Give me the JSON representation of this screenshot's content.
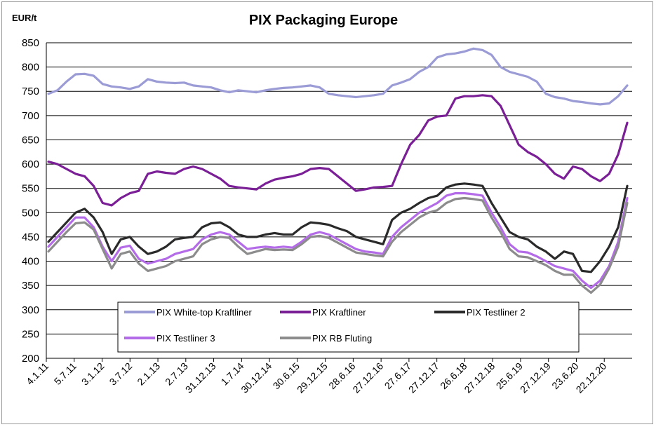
{
  "chart_data": {
    "type": "line",
    "title": "PIX Packaging Europe",
    "ylabel": "EUR/t",
    "ylim": [
      200,
      850
    ],
    "yticks": [
      200,
      250,
      300,
      350,
      400,
      450,
      500,
      550,
      600,
      650,
      700,
      750,
      800,
      850
    ],
    "grid": true,
    "legend_placement": "bottom-center",
    "x_tick_labels": [
      "4.1.11",
      "5.7.11",
      "3.1.12",
      "3.7.12",
      "2.1.13",
      "2.7.13",
      "31.12.13",
      "1.7.14",
      "30.12.14",
      "30.6.15",
      "29.12.15",
      "28.6.16",
      "27.12.16",
      "27.6.17",
      "27.12.17",
      "26.6.18",
      "27.12.18",
      "25.6.19",
      "27.12.19",
      "23.6.20",
      "22.12.20"
    ],
    "series": [
      {
        "name": "PIX White-top Kraftliner",
        "color": "#9b9bd6",
        "values": [
          745,
          752,
          770,
          785,
          786,
          782,
          765,
          760,
          758,
          755,
          760,
          775,
          770,
          768,
          767,
          768,
          762,
          760,
          758,
          752,
          748,
          752,
          750,
          748,
          752,
          755,
          757,
          758,
          760,
          762,
          758,
          745,
          742,
          740,
          738,
          740,
          742,
          745,
          762,
          768,
          775,
          790,
          800,
          820,
          826,
          828,
          832,
          838,
          835,
          825,
          800,
          790,
          785,
          780,
          770,
          745,
          738,
          735,
          730,
          728,
          725,
          723,
          725,
          740,
          762
        ]
      },
      {
        "name": "PIX Kraftliner",
        "color": "#7b1f97",
        "values": [
          605,
          600,
          590,
          580,
          575,
          555,
          520,
          515,
          530,
          540,
          545,
          580,
          585,
          582,
          580,
          590,
          595,
          590,
          580,
          570,
          555,
          552,
          550,
          548,
          560,
          568,
          572,
          575,
          580,
          590,
          592,
          590,
          575,
          560,
          545,
          548,
          552,
          553,
          555,
          600,
          640,
          660,
          690,
          698,
          700,
          735,
          740,
          740,
          742,
          740,
          720,
          680,
          640,
          625,
          615,
          600,
          580,
          570,
          595,
          590,
          575,
          565,
          580,
          620,
          685
        ]
      },
      {
        "name": "PIX Testliner 2",
        "color": "#2a2a2a",
        "values": [
          440,
          460,
          480,
          500,
          508,
          490,
          460,
          415,
          445,
          450,
          430,
          415,
          420,
          430,
          445,
          448,
          450,
          470,
          478,
          480,
          470,
          455,
          450,
          450,
          455,
          458,
          455,
          455,
          470,
          480,
          478,
          475,
          468,
          462,
          450,
          445,
          440,
          435,
          485,
          500,
          508,
          520,
          530,
          535,
          552,
          558,
          560,
          558,
          555,
          520,
          490,
          460,
          450,
          445,
          430,
          420,
          405,
          420,
          415,
          380,
          378,
          400,
          430,
          470,
          555
        ]
      },
      {
        "name": "PIX Testliner 3",
        "color": "#b46be8",
        "values": [
          430,
          450,
          470,
          490,
          490,
          470,
          430,
          400,
          428,
          432,
          405,
          395,
          400,
          405,
          415,
          420,
          425,
          445,
          455,
          460,
          455,
          440,
          425,
          428,
          430,
          428,
          430,
          428,
          440,
          455,
          460,
          455,
          445,
          435,
          425,
          420,
          418,
          415,
          450,
          470,
          485,
          500,
          510,
          520,
          535,
          540,
          540,
          538,
          535,
          500,
          470,
          435,
          420,
          418,
          410,
          400,
          390,
          385,
          380,
          360,
          345,
          360,
          390,
          440,
          530
        ]
      },
      {
        "name": "PIX RB Fluting",
        "color": "#8c8c8c",
        "values": [
          420,
          440,
          460,
          478,
          480,
          465,
          425,
          385,
          415,
          420,
          395,
          380,
          385,
          390,
          400,
          405,
          410,
          435,
          445,
          450,
          448,
          430,
          415,
          420,
          425,
          423,
          424,
          423,
          435,
          450,
          452,
          448,
          438,
          428,
          418,
          415,
          412,
          410,
          440,
          460,
          475,
          490,
          500,
          505,
          520,
          528,
          530,
          528,
          525,
          490,
          460,
          425,
          410,
          408,
          400,
          392,
          380,
          372,
          372,
          350,
          335,
          352,
          385,
          430,
          520
        ]
      }
    ]
  }
}
